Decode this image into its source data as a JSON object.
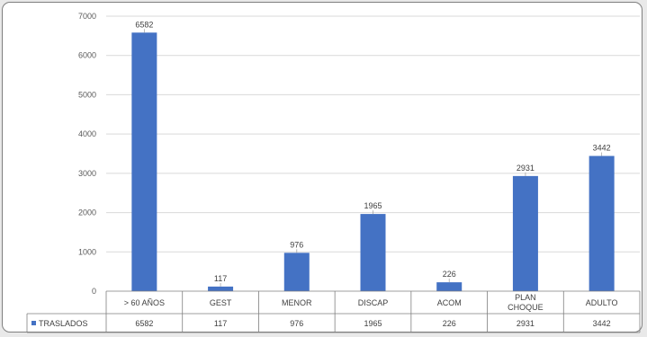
{
  "chart_data": {
    "type": "bar",
    "categories": [
      "> 60 AÑOS",
      "GEST",
      "MENOR",
      "DISCAP",
      "ACOM",
      "PLAN\nCHOQUE",
      "ADULTO"
    ],
    "series": [
      {
        "name": "TRASLADOS",
        "values": [
          6582,
          117,
          976,
          1965,
          226,
          2931,
          3442
        ],
        "color": "#4472c4"
      }
    ],
    "ylim": [
      0,
      7000
    ],
    "yticks": [
      0,
      1000,
      2000,
      3000,
      4000,
      5000,
      6000,
      7000
    ],
    "grid": true,
    "data_labels": true,
    "data_table": true,
    "title": "",
    "xlabel": "",
    "ylabel": ""
  }
}
